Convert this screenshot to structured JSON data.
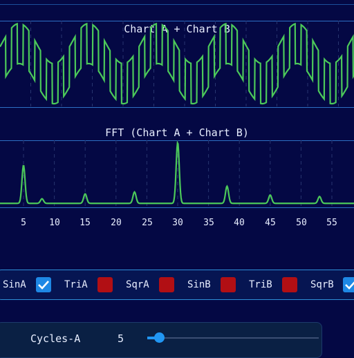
{
  "charts": {
    "wave": {
      "title": "Chart A + Chart B",
      "line_color": "#4cc95a",
      "sine_cycles": 5,
      "square_cycles": 30
    },
    "fft": {
      "title": "FFT (Chart A + Chart B)",
      "line_color": "#4cc95a",
      "x_ticks": [
        "5",
        "10",
        "15",
        "20",
        "25",
        "30",
        "35",
        "40",
        "45",
        "50",
        "55"
      ]
    }
  },
  "chart_data": [
    {
      "type": "line",
      "title": "Chart A + Chart B",
      "components": [
        {
          "waveform": "sine",
          "cycles": 5
        },
        {
          "waveform": "square",
          "cycles": 30
        }
      ],
      "grid": true
    },
    {
      "type": "line",
      "title": "FFT (Chart A + Chart B)",
      "x_ticks": [
        5,
        10,
        15,
        20,
        25,
        30,
        35,
        40,
        45,
        50,
        55
      ],
      "peaks": [
        {
          "x": 5,
          "y": 1.0
        },
        {
          "x": 8,
          "y": 0.12
        },
        {
          "x": 15,
          "y": 0.25
        },
        {
          "x": 23,
          "y": 0.3
        },
        {
          "x": 30,
          "y": 1.6
        },
        {
          "x": 38,
          "y": 0.45
        },
        {
          "x": 45,
          "y": 0.22
        },
        {
          "x": 53,
          "y": 0.18
        }
      ],
      "grid": true
    }
  ],
  "checkboxes": [
    {
      "label": "SinA",
      "checked": true
    },
    {
      "label": "TriA",
      "checked": false
    },
    {
      "label": "SqrA",
      "checked": false
    },
    {
      "label": "SinB",
      "checked": false
    },
    {
      "label": "TriB",
      "checked": false
    },
    {
      "label": "SqrB",
      "checked": true
    }
  ],
  "slider": {
    "label": "Cycles-A",
    "value": "5",
    "level": 0.07
  },
  "colors": {
    "background": "#040844",
    "checked": "#1e88e5",
    "unchecked": "#b10f14",
    "accent": "#2196f3"
  }
}
